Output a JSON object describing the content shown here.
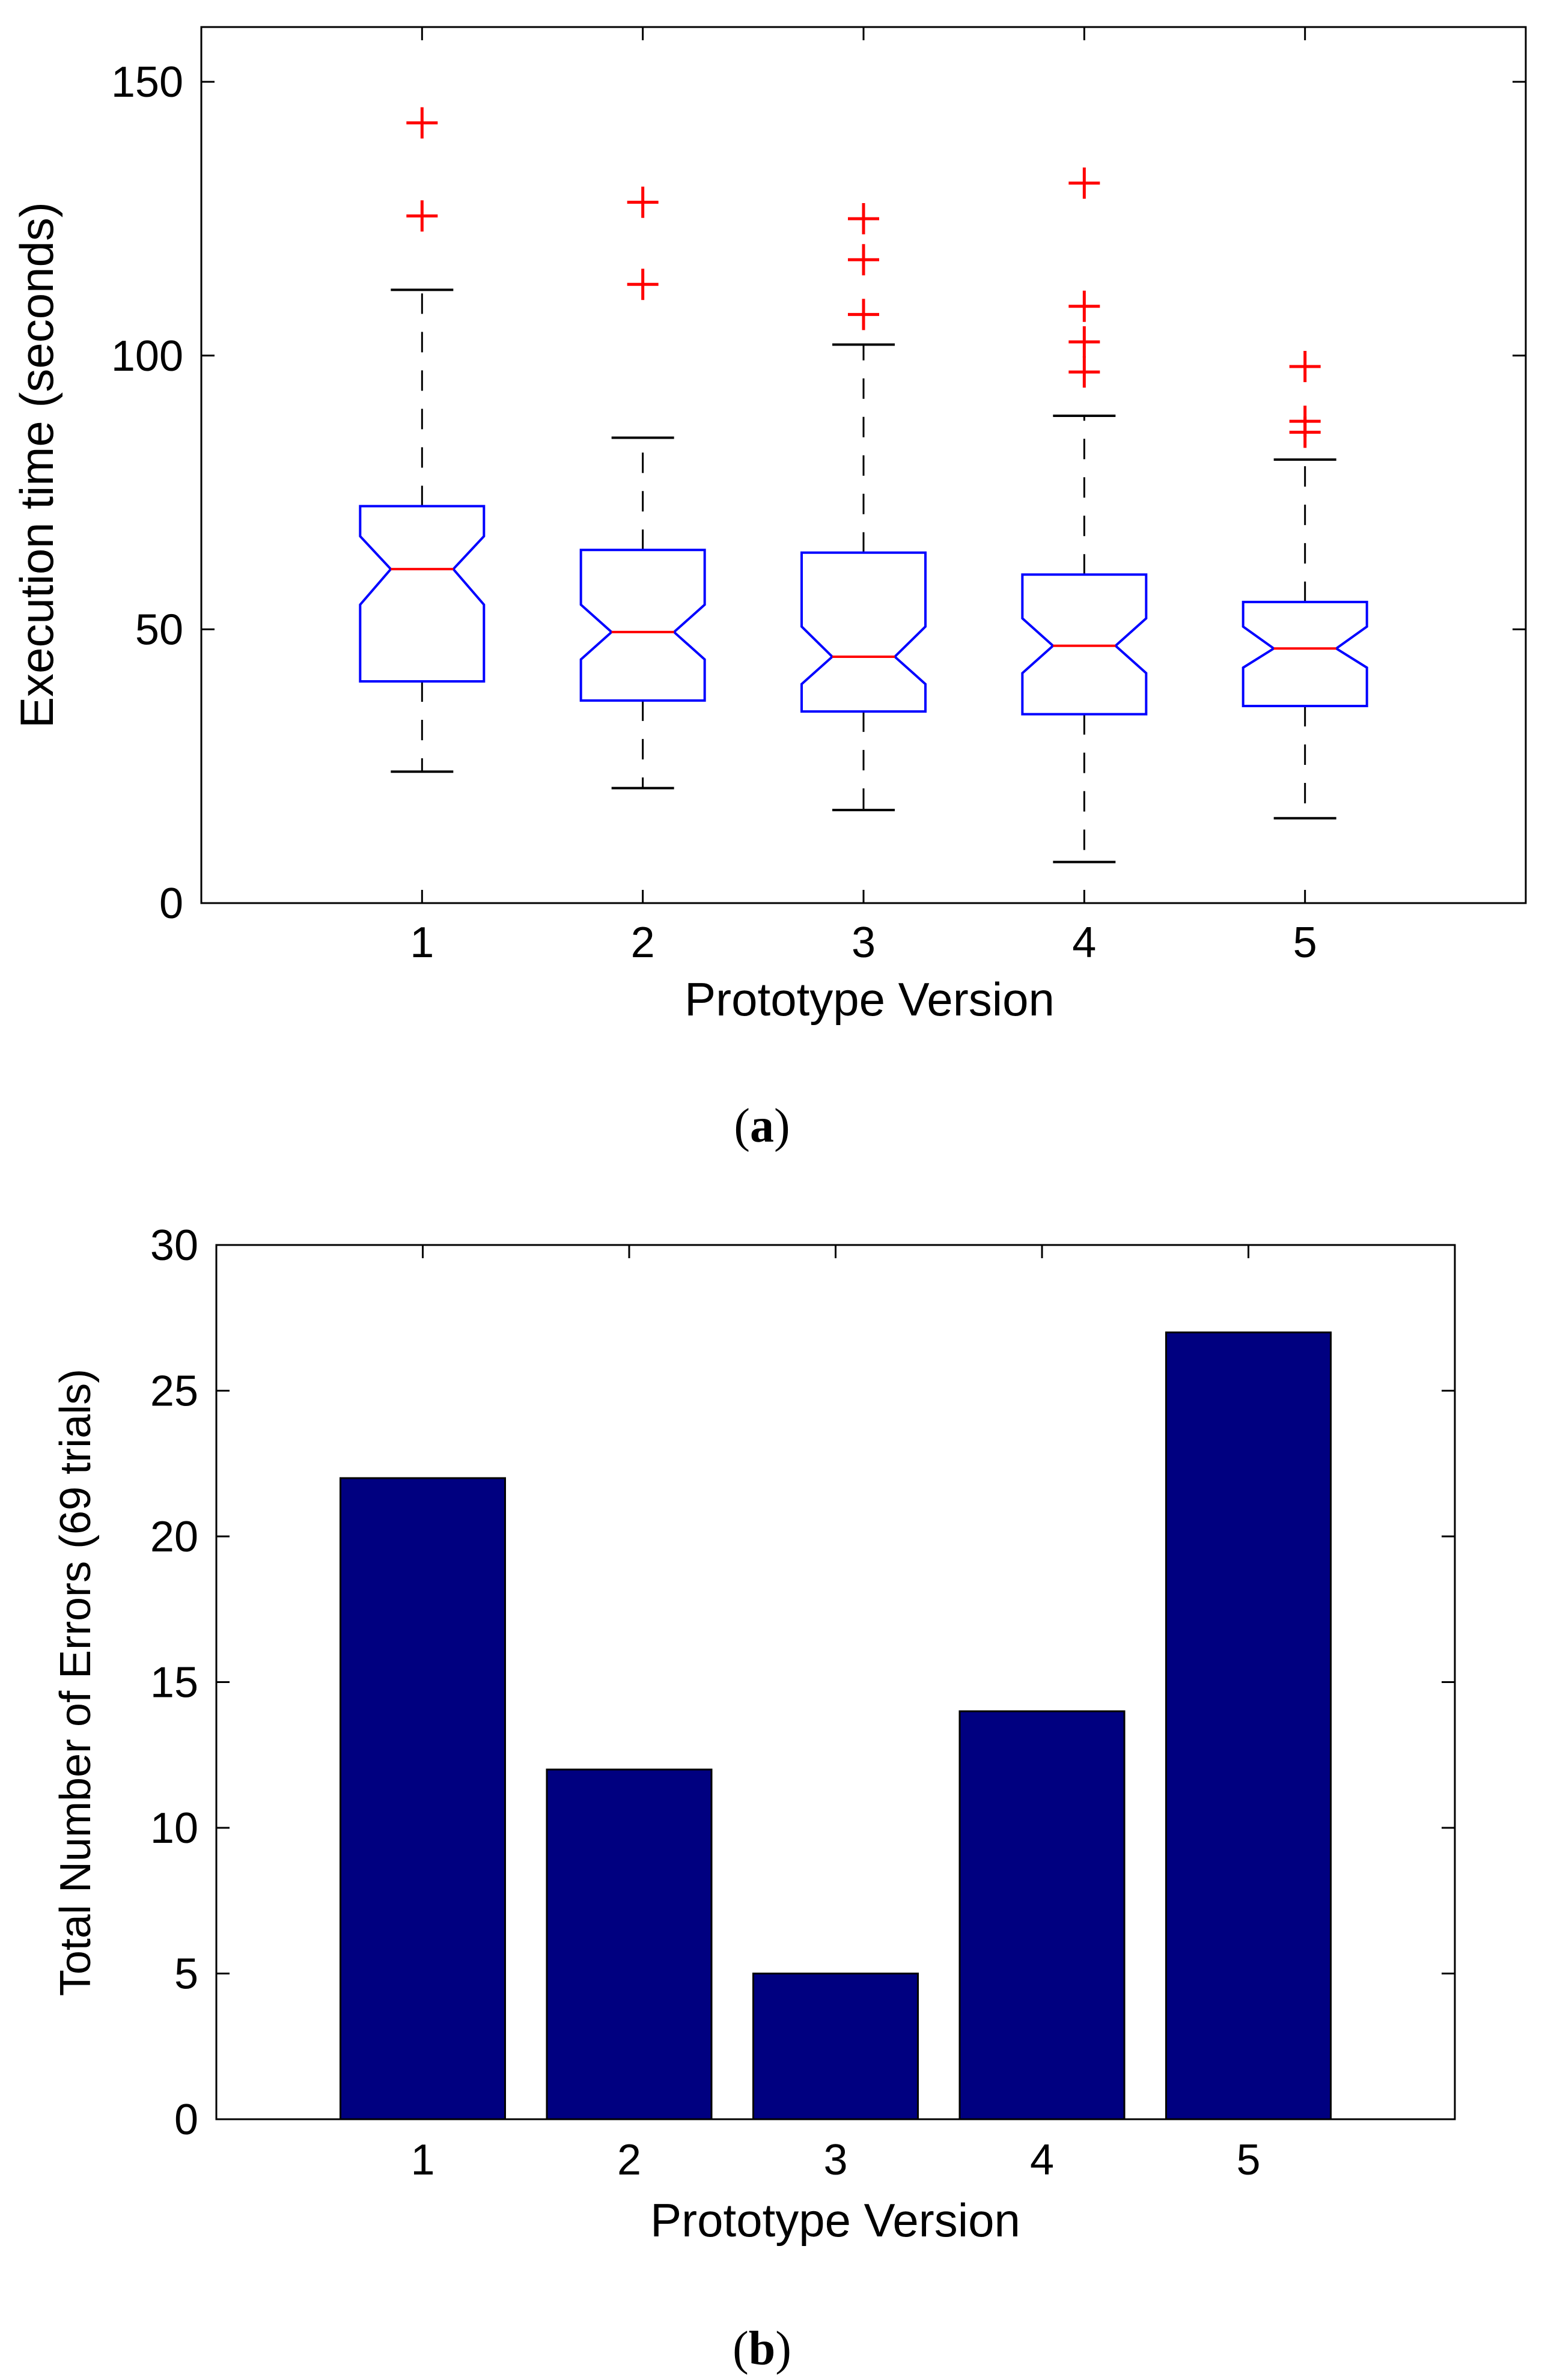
{
  "figure": {
    "caption_a": {
      "open": "(",
      "letter": "a",
      "close": ")"
    },
    "caption_b": {
      "open": "(",
      "letter": "b",
      "close": ")"
    }
  },
  "colors": {
    "box_edge": "#0000ff",
    "median": "#ff0000",
    "outlier": "#ff0000",
    "whisker": "#000000",
    "bar_fill": "#000080",
    "bar_edge": "#000000"
  },
  "chart_data": [
    {
      "type": "box",
      "notched": true,
      "title": "",
      "xlabel": "Prototype Version",
      "ylabel": "Execution time (seconds)",
      "ylim": [
        0,
        160
      ],
      "yticks": [
        0,
        50,
        100,
        150
      ],
      "categories": [
        "1",
        "2",
        "3",
        "4",
        "5"
      ],
      "boxes": [
        {
          "category": "1",
          "whisker_low": 24,
          "q1": 40.5,
          "median": 61,
          "q3": 72.5,
          "whisker_high": 112,
          "notch_low": 54.5,
          "notch_high": 67,
          "outliers": [
            125.5,
            142.5
          ]
        },
        {
          "category": "2",
          "whisker_low": 21,
          "q1": 37,
          "median": 49.5,
          "q3": 64.5,
          "whisker_high": 85,
          "notch_low": 44.5,
          "notch_high": 54.5,
          "outliers": [
            113,
            128
          ]
        },
        {
          "category": "3",
          "whisker_low": 17,
          "q1": 35,
          "median": 45,
          "q3": 64,
          "whisker_high": 102,
          "notch_low": 40,
          "notch_high": 50.5,
          "outliers": [
            107.5,
            117.5,
            125
          ]
        },
        {
          "category": "4",
          "whisker_low": 7.5,
          "q1": 34.5,
          "median": 47,
          "q3": 60,
          "whisker_high": 89,
          "notch_low": 42,
          "notch_high": 52,
          "outliers": [
            97,
            102.5,
            109,
            131.5
          ]
        },
        {
          "category": "5",
          "whisker_low": 15.5,
          "q1": 36,
          "median": 46.5,
          "q3": 55,
          "whisker_high": 81,
          "notch_low": 43,
          "notch_high": 50.5,
          "outliers": [
            86,
            88,
            98
          ]
        }
      ]
    },
    {
      "type": "bar",
      "title": "",
      "xlabel": "Prototype Version",
      "ylabel": "Total Number of Errors (69 trials)",
      "ylim": [
        0,
        30
      ],
      "yticks": [
        0,
        5,
        10,
        15,
        20,
        25,
        30
      ],
      "categories": [
        "1",
        "2",
        "3",
        "4",
        "5"
      ],
      "values": [
        22,
        12,
        5,
        14,
        27
      ]
    }
  ]
}
